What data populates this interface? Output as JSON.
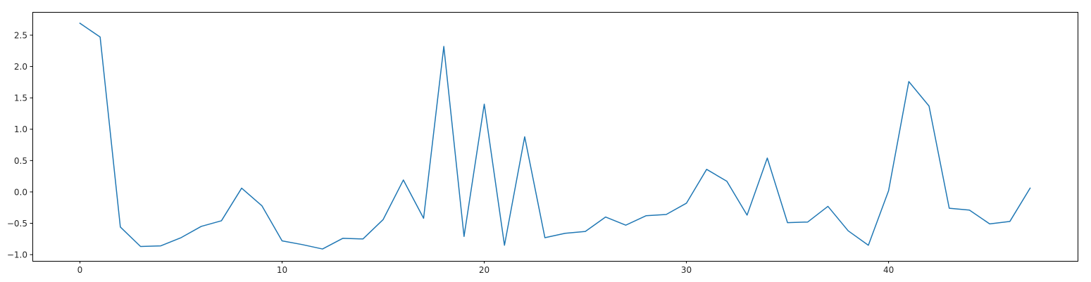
{
  "chart_data": {
    "type": "line",
    "title": "",
    "xlabel": "",
    "ylabel": "",
    "xlim": [
      -2.35,
      49.35
    ],
    "ylim": [
      -1.1,
      2.87
    ],
    "xticks": [
      0,
      10,
      20,
      30,
      40
    ],
    "yticks": [
      -1.0,
      -0.5,
      0.0,
      0.5,
      1.0,
      1.5,
      2.0,
      2.5
    ],
    "xtick_labels": [
      "0",
      "10",
      "20",
      "30",
      "40"
    ],
    "ytick_labels": [
      "−1.0",
      "−0.5",
      "0.0",
      "0.5",
      "1.0",
      "1.5",
      "2.0",
      "2.5"
    ],
    "grid": false,
    "series": [
      {
        "color": "#1f77b4",
        "x": [
          0,
          1,
          2,
          3,
          4,
          5,
          6,
          7,
          8,
          9,
          10,
          11,
          12,
          13,
          14,
          15,
          16,
          17,
          18,
          19,
          20,
          21,
          22,
          23,
          24,
          25,
          26,
          27,
          28,
          29,
          30,
          31,
          32,
          33,
          34,
          35,
          36,
          37,
          38,
          39,
          40,
          41,
          42,
          43,
          44,
          45,
          46,
          47
        ],
        "values": [
          2.69,
          2.47,
          -0.56,
          -0.87,
          -0.86,
          -0.73,
          -0.55,
          -0.46,
          0.06,
          -0.22,
          -0.78,
          -0.84,
          -0.91,
          -0.74,
          -0.75,
          -0.44,
          0.19,
          -0.42,
          2.32,
          -0.71,
          1.4,
          -0.85,
          0.88,
          -0.73,
          -0.66,
          -0.63,
          -0.4,
          -0.53,
          -0.38,
          -0.36,
          -0.18,
          0.36,
          0.17,
          -0.37,
          0.54,
          -0.49,
          -0.48,
          -0.23,
          -0.62,
          -0.85,
          0.02,
          1.76,
          1.37,
          -0.26,
          -0.29,
          -0.51,
          -0.47,
          0.06
        ]
      }
    ]
  }
}
